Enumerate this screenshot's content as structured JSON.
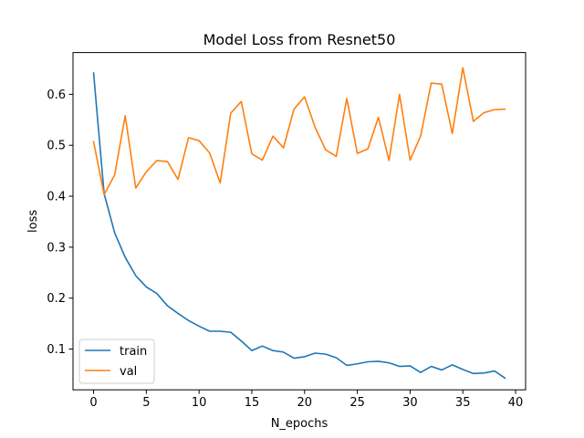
{
  "chart_data": {
    "type": "line",
    "title": "Model Loss  from Resnet50",
    "xlabel": "N_epochs",
    "ylabel": "loss",
    "xlim": [
      -1.95,
      40.95
    ],
    "ylim": [
      0.02,
      0.682
    ],
    "xticks": [
      0,
      5,
      10,
      15,
      20,
      25,
      30,
      35,
      40
    ],
    "yticks": [
      0.1,
      0.2,
      0.3,
      0.4,
      0.5,
      0.6
    ],
    "ytick_labels": [
      "0.1",
      "0.2",
      "0.3",
      "0.4",
      "0.5",
      "0.6"
    ],
    "x": [
      0,
      1,
      2,
      3,
      4,
      5,
      6,
      7,
      8,
      9,
      10,
      11,
      12,
      13,
      14,
      15,
      16,
      17,
      18,
      19,
      20,
      21,
      22,
      23,
      24,
      25,
      26,
      27,
      28,
      29,
      30,
      31,
      32,
      33,
      34,
      35,
      36,
      37,
      38,
      39
    ],
    "series": [
      {
        "name": "train",
        "color": "#1f77b4",
        "values": [
          0.642,
          0.405,
          0.328,
          0.28,
          0.244,
          0.222,
          0.209,
          0.185,
          0.17,
          0.156,
          0.145,
          0.135,
          0.135,
          0.133,
          0.116,
          0.097,
          0.106,
          0.097,
          0.094,
          0.082,
          0.085,
          0.092,
          0.09,
          0.083,
          0.068,
          0.071,
          0.075,
          0.076,
          0.073,
          0.066,
          0.067,
          0.054,
          0.066,
          0.059,
          0.069,
          0.06,
          0.052,
          0.053,
          0.057,
          0.043
        ]
      },
      {
        "name": "val",
        "color": "#ff7f0e",
        "values": [
          0.507,
          0.403,
          0.442,
          0.558,
          0.416,
          0.448,
          0.47,
          0.468,
          0.433,
          0.515,
          0.509,
          0.485,
          0.426,
          0.563,
          0.586,
          0.483,
          0.471,
          0.518,
          0.495,
          0.571,
          0.595,
          0.535,
          0.491,
          0.478,
          0.592,
          0.484,
          0.493,
          0.555,
          0.47,
          0.6,
          0.471,
          0.518,
          0.622,
          0.62,
          0.523,
          0.652,
          0.547,
          0.564,
          0.57,
          0.571
        ]
      }
    ],
    "legend": "lower-left",
    "grid": false
  }
}
